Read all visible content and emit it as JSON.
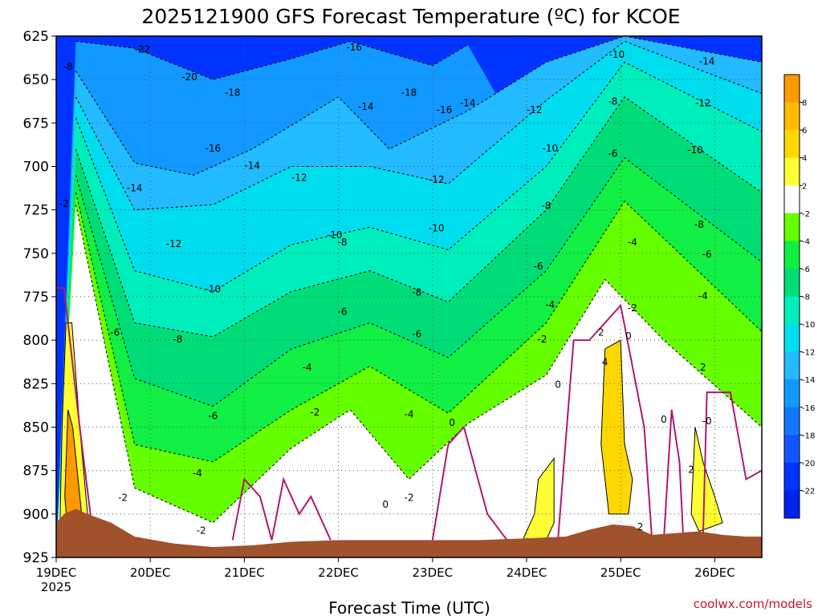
{
  "chart_data": {
    "type": "heatmap",
    "title": "2025121900 GFS Forecast Temperature (ºC) for KCOE",
    "xlabel": "Forecast Time (UTC)",
    "ylabel": "",
    "ylim": [
      925,
      625
    ],
    "y_ticks": [
      "625",
      "650",
      "675",
      "700",
      "725",
      "750",
      "775",
      "800",
      "825",
      "850",
      "875",
      "900",
      "925"
    ],
    "x_start_hours": 0,
    "x_end_hours": 180,
    "x_ticks": [
      {
        "label": "19DEC",
        "sub": "2025",
        "hours": 0
      },
      {
        "label": "20DEC",
        "hours": 24
      },
      {
        "label": "21DEC",
        "hours": 48
      },
      {
        "label": "22DEC",
        "hours": 72
      },
      {
        "label": "23DEC",
        "hours": 96
      },
      {
        "label": "24DEC",
        "hours": 120
      },
      {
        "label": "25DEC",
        "hours": 144
      },
      {
        "label": "26DEC",
        "hours": 168
      }
    ],
    "colorbar": {
      "levels": [
        "8",
        "6",
        "4",
        "2",
        "-2",
        "-4",
        "-6",
        "-8",
        "-10",
        "-12",
        "-14",
        "-16",
        "-18",
        "-20",
        "-22"
      ],
      "colors": [
        "#ff9900",
        "#ffbb00",
        "#ffd700",
        "#ffff33",
        "#ffffff",
        "#66ff00",
        "#11ee44",
        "#00dd77",
        "#00eebb",
        "#00ddee",
        "#22bbff",
        "#1199ff",
        "#1177ff",
        "#1155ff",
        "#0033ff",
        "#0022ee"
      ]
    },
    "isotherm_series": [
      {
        "name": "-16C",
        "values": [
          {
            "h": 5,
            "p": 628
          },
          {
            "h": 20,
            "p": 632
          },
          {
            "h": 40,
            "p": 650
          },
          {
            "h": 60,
            "p": 638
          },
          {
            "h": 75,
            "p": 628
          },
          {
            "h": 96,
            "p": 642
          },
          {
            "h": 105,
            "p": 630
          }
        ]
      },
      {
        "name": "-14C",
        "values": [
          {
            "h": 5,
            "p": 645
          },
          {
            "h": 20,
            "p": 698
          },
          {
            "h": 35,
            "p": 705
          },
          {
            "h": 50,
            "p": 690
          },
          {
            "h": 72,
            "p": 660
          },
          {
            "h": 85,
            "p": 690
          },
          {
            "h": 105,
            "p": 668
          },
          {
            "h": 125,
            "p": 640
          },
          {
            "h": 145,
            "p": 625
          },
          {
            "h": 180,
            "p": 640
          }
        ]
      },
      {
        "name": "-12C",
        "values": [
          {
            "h": 5,
            "p": 660
          },
          {
            "h": 20,
            "p": 725
          },
          {
            "h": 40,
            "p": 722
          },
          {
            "h": 60,
            "p": 700
          },
          {
            "h": 80,
            "p": 700
          },
          {
            "h": 100,
            "p": 710
          },
          {
            "h": 125,
            "p": 662
          },
          {
            "h": 145,
            "p": 628
          },
          {
            "h": 180,
            "p": 658
          }
        ]
      },
      {
        "name": "-10C",
        "values": [
          {
            "h": 5,
            "p": 672
          },
          {
            "h": 20,
            "p": 760
          },
          {
            "h": 40,
            "p": 772
          },
          {
            "h": 60,
            "p": 745
          },
          {
            "h": 80,
            "p": 735
          },
          {
            "h": 100,
            "p": 748
          },
          {
            "h": 125,
            "p": 700
          },
          {
            "h": 145,
            "p": 640
          },
          {
            "h": 180,
            "p": 680
          }
        ]
      },
      {
        "name": "-8C",
        "values": [
          {
            "h": 5,
            "p": 690
          },
          {
            "h": 20,
            "p": 790
          },
          {
            "h": 40,
            "p": 798
          },
          {
            "h": 60,
            "p": 772
          },
          {
            "h": 80,
            "p": 760
          },
          {
            "h": 100,
            "p": 778
          },
          {
            "h": 125,
            "p": 725
          },
          {
            "h": 145,
            "p": 660
          },
          {
            "h": 180,
            "p": 715
          }
        ]
      },
      {
        "name": "-6C",
        "values": [
          {
            "h": 5,
            "p": 705
          },
          {
            "h": 20,
            "p": 822
          },
          {
            "h": 40,
            "p": 838
          },
          {
            "h": 60,
            "p": 805
          },
          {
            "h": 80,
            "p": 790
          },
          {
            "h": 100,
            "p": 810
          },
          {
            "h": 125,
            "p": 760
          },
          {
            "h": 145,
            "p": 695
          },
          {
            "h": 180,
            "p": 755
          }
        ]
      },
      {
        "name": "-4C",
        "values": [
          {
            "h": 5,
            "p": 715
          },
          {
            "h": 20,
            "p": 860
          },
          {
            "h": 40,
            "p": 870
          },
          {
            "h": 60,
            "p": 840
          },
          {
            "h": 80,
            "p": 815
          },
          {
            "h": 100,
            "p": 842
          },
          {
            "h": 125,
            "p": 790
          },
          {
            "h": 145,
            "p": 720
          },
          {
            "h": 180,
            "p": 795
          }
        ]
      },
      {
        "name": "-2C",
        "values": [
          {
            "h": 5,
            "p": 722
          },
          {
            "h": 20,
            "p": 885
          },
          {
            "h": 40,
            "p": 905
          },
          {
            "h": 60,
            "p": 862
          },
          {
            "h": 75,
            "p": 840
          },
          {
            "h": 90,
            "p": 880
          },
          {
            "h": 105,
            "p": 848
          },
          {
            "h": 125,
            "p": 820
          },
          {
            "h": 140,
            "p": 765
          },
          {
            "h": 155,
            "p": 800
          },
          {
            "h": 180,
            "p": 850
          }
        ]
      }
    ],
    "contour_labels": [
      {
        "text": "-22",
        "h": 22,
        "p": 633
      },
      {
        "text": "-20",
        "h": 34,
        "p": 649
      },
      {
        "text": "-18",
        "h": 45,
        "p": 658
      },
      {
        "text": "-16",
        "h": 40,
        "p": 690
      },
      {
        "text": "-16",
        "h": 76,
        "p": 632
      },
      {
        "text": "-18",
        "h": 90,
        "p": 658
      },
      {
        "text": "-16",
        "h": 99,
        "p": 668
      },
      {
        "text": "-14",
        "h": 105,
        "p": 664
      },
      {
        "text": "-14",
        "h": 79,
        "p": 666
      },
      {
        "text": "-14",
        "h": 50,
        "p": 700
      },
      {
        "text": "-14",
        "h": 20,
        "p": 713
      },
      {
        "text": "-12",
        "h": 62,
        "p": 707
      },
      {
        "text": "-12",
        "h": 97,
        "p": 708
      },
      {
        "text": "-12",
        "h": 122,
        "p": 668
      },
      {
        "text": "-10",
        "h": 126,
        "p": 690
      },
      {
        "text": "-10",
        "h": 143,
        "p": 636
      },
      {
        "text": "-8",
        "h": 3,
        "p": 643
      },
      {
        "text": "-12",
        "h": 30,
        "p": 745
      },
      {
        "text": "-10",
        "h": 71,
        "p": 740
      },
      {
        "text": "-8",
        "h": 73,
        "p": 744
      },
      {
        "text": "-10",
        "h": 97,
        "p": 736
      },
      {
        "text": "-10",
        "h": 40,
        "p": 771
      },
      {
        "text": "-8",
        "h": 125,
        "p": 723
      },
      {
        "text": "-8",
        "h": 142,
        "p": 663
      },
      {
        "text": "-6",
        "h": 142,
        "p": 693
      },
      {
        "text": "-8",
        "h": 92,
        "p": 773
      },
      {
        "text": "-6",
        "h": 123,
        "p": 758
      },
      {
        "text": "-4",
        "h": 147,
        "p": 744
      },
      {
        "text": "-6",
        "h": 73,
        "p": 784
      },
      {
        "text": "-6",
        "h": 92,
        "p": 797
      },
      {
        "text": "-8",
        "h": 31,
        "p": 800
      },
      {
        "text": "-6",
        "h": 15,
        "p": 796
      },
      {
        "text": "-4",
        "h": 126,
        "p": 780
      },
      {
        "text": "-2",
        "h": 147,
        "p": 782
      },
      {
        "text": "-4",
        "h": 64,
        "p": 816
      },
      {
        "text": "-2",
        "h": 124,
        "p": 800
      },
      {
        "text": "2",
        "h": 139,
        "p": 796
      },
      {
        "text": "0",
        "h": 146,
        "p": 798
      },
      {
        "text": "-6",
        "h": 40,
        "p": 844
      },
      {
        "text": "-2",
        "h": 66,
        "p": 842
      },
      {
        "text": "-4",
        "h": 90,
        "p": 843
      },
      {
        "text": "0",
        "h": 128,
        "p": 826
      },
      {
        "text": "4",
        "h": 140,
        "p": 813
      },
      {
        "text": "0",
        "h": 101,
        "p": 848
      },
      {
        "text": "0",
        "h": 155,
        "p": 846
      },
      {
        "text": "-0",
        "h": 166,
        "p": 847
      },
      {
        "text": "-4",
        "h": 36,
        "p": 877
      },
      {
        "text": "-2",
        "h": 17,
        "p": 891
      },
      {
        "text": "-2",
        "h": 90,
        "p": 891
      },
      {
        "text": "0",
        "h": 84,
        "p": 895
      },
      {
        "text": "2",
        "h": 162,
        "p": 875
      },
      {
        "text": "2",
        "h": 149,
        "p": 908
      },
      {
        "text": "-2",
        "h": 37,
        "p": 910
      },
      {
        "text": "2",
        "h": 165,
        "p": 816
      },
      {
        "text": "-8",
        "h": 164,
        "p": 734
      },
      {
        "text": "-6",
        "h": 166,
        "p": 751
      },
      {
        "text": "-4",
        "h": 165,
        "p": 775
      },
      {
        "text": "-10",
        "h": 163,
        "p": 691
      },
      {
        "text": "-12",
        "h": 165,
        "p": 664
      },
      {
        "text": "-14",
        "h": 166,
        "p": 640
      },
      {
        "text": "-2",
        "h": 2,
        "p": 722
      }
    ]
  },
  "credit": "coolwx.com/models"
}
